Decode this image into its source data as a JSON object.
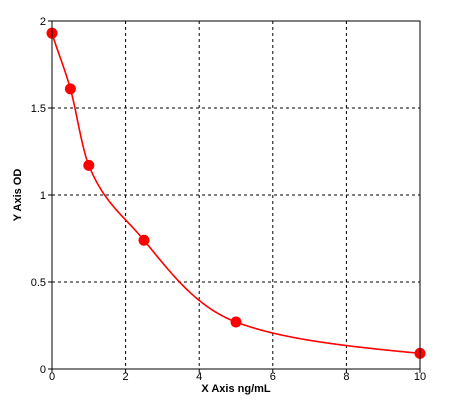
{
  "chart_data": {
    "type": "scatter",
    "title": "",
    "xlabel": "X Axis ng/mL",
    "ylabel": "Y Axis OD",
    "xlim": [
      0,
      10
    ],
    "ylim": [
      0,
      2
    ],
    "x_ticks": [
      {
        "value": 0,
        "label": "0"
      },
      {
        "value": 2,
        "label": "2"
      },
      {
        "value": 4,
        "label": "4"
      },
      {
        "value": 6,
        "label": "6"
      },
      {
        "value": 8,
        "label": "8"
      },
      {
        "value": 10,
        "label": "10"
      }
    ],
    "y_ticks": [
      {
        "value": 0,
        "label": "0"
      },
      {
        "value": 0.5,
        "label": "0.5"
      },
      {
        "value": 1,
        "label": "1"
      },
      {
        "value": 1.5,
        "label": "1.5"
      },
      {
        "value": 2,
        "label": "2"
      }
    ],
    "grid": true,
    "grid_style": "dashed",
    "legend": "none",
    "series": [
      {
        "points": [
          {
            "x": 0,
            "y": 1.93
          },
          {
            "x": 0.5,
            "y": 1.61
          },
          {
            "x": 1,
            "y": 1.17
          },
          {
            "x": 2.5,
            "y": 0.74
          },
          {
            "x": 5,
            "y": 0.27
          },
          {
            "x": 10,
            "y": 0.09
          }
        ],
        "color": "#ff0000",
        "marker": "circle",
        "fit_line": "smooth curve"
      }
    ]
  }
}
